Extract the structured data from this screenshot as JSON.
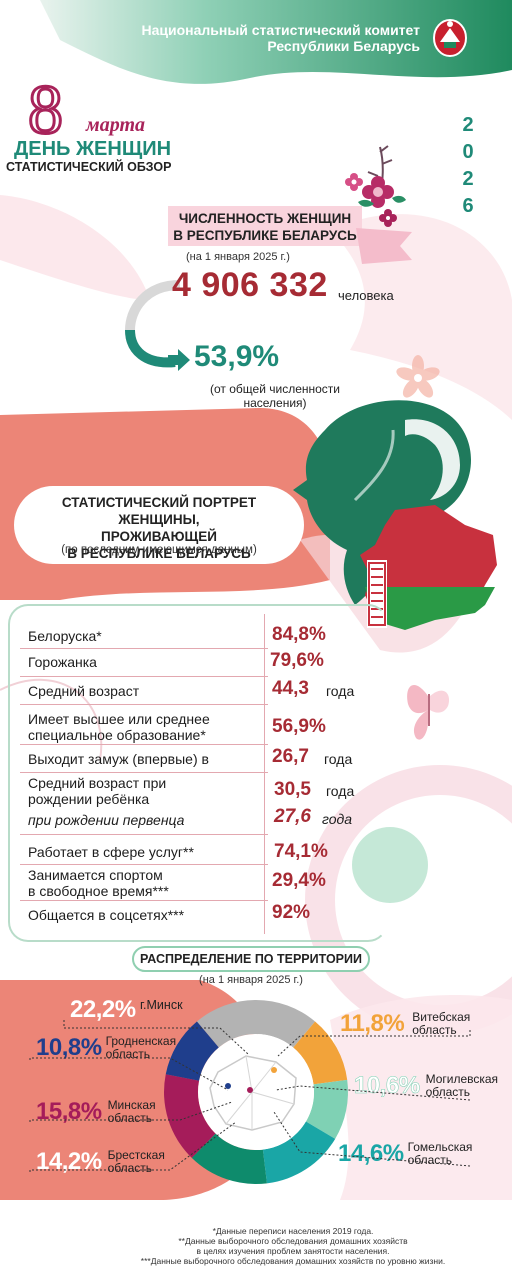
{
  "header": {
    "org_line1": "Национальный статистический комитет",
    "org_line2": "Республики Беларусь",
    "day_number": "8",
    "month": "марта",
    "title": "ДЕНЬ ЖЕНЩИН",
    "subtitle": "СТАТИСТИЧЕСКИЙ ОБЗОР",
    "year_digits": [
      "2",
      "0",
      "2",
      "6"
    ]
  },
  "population": {
    "heading_line1": "ЧИСЛЕННОСТЬ ЖЕНЩИН",
    "heading_line2": "В РЕСПУБЛИКЕ БЕЛАРУСЬ",
    "date_note": "(на 1 января 2025 г.)",
    "value": "4 906 332",
    "unit": "человека",
    "share": "53,9%",
    "share_note_line1": "(от общей численности",
    "share_note_line2": "населения)"
  },
  "portrait": {
    "heading_line1": "СТАТИСТИЧЕСКИЙ ПОРТРЕТ ЖЕНЩИНЫ,",
    "heading_line2": "ПРОЖИВАЮЩЕЙ",
    "heading_line3": "В РЕСПУБЛИКЕ БЕЛАРУСЬ",
    "heading_note": "(по последним имеющимся данным)",
    "rows": [
      {
        "label1": "Белоруска*",
        "label2": "",
        "value": "84,8%",
        "unit": ""
      },
      {
        "label1": "Горожанка",
        "label2": "",
        "value": "79,6%",
        "unit": ""
      },
      {
        "label1": "Средний возраст",
        "label2": "",
        "value": "44,3",
        "unit": "года"
      },
      {
        "label1": "Имеет высшее или среднее",
        "label2": "специальное образование*",
        "value": "56,9%",
        "unit": ""
      },
      {
        "label1": "Выходит замуж (впервые) в",
        "label2": "",
        "value": "26,7",
        "unit": "года"
      },
      {
        "label1": "Средний возраст при",
        "label2": "рождении ребёнка",
        "value": "30,5",
        "unit": "года"
      },
      {
        "label1": "при рождении первенца",
        "label2": "",
        "value": "27,6",
        "unit": "года"
      },
      {
        "label1": "Работает в сфере услуг**",
        "label2": "",
        "value": "74,1%",
        "unit": ""
      },
      {
        "label1": "Занимается спортом",
        "label2": "в свободное время***",
        "value": "29,4%",
        "unit": ""
      },
      {
        "label1": "Общается в соцсетях***",
        "label2": "",
        "value": "92%",
        "unit": ""
      }
    ]
  },
  "territory": {
    "heading": "РАСПРЕДЕЛЕНИЕ ПО ТЕРРИТОРИИ",
    "date_note": "(на 1 января 2025 г.)"
  },
  "chart_data": {
    "type": "pie",
    "title": "РАСПРЕДЕЛЕНИЕ ПО ТЕРРИТОРИИ",
    "categories": [
      "г.Минск",
      "Витебская область",
      "Могилевская область",
      "Гомельская область",
      "Брестская область",
      "Минская область",
      "Гродненская область"
    ],
    "values": [
      22.2,
      11.8,
      10.6,
      14.6,
      14.2,
      15.8,
      10.8
    ],
    "labels": [
      "22,2%",
      "11,8%",
      "10,6%",
      "14,6%",
      "14,2%",
      "15,8%",
      "10,8%"
    ],
    "colors": [
      "#b3b3b3",
      "#f2a33a",
      "#7fd1b4",
      "#1aa6a6",
      "#0e8b6c",
      "#a51c5a",
      "#1f3e8c"
    ],
    "region_lines": [
      [
        "г.Минск",
        ""
      ],
      [
        "Витебская",
        "область"
      ],
      [
        "Могилевская",
        "область"
      ],
      [
        "Гомельская",
        "область"
      ],
      [
        "Брестская",
        "область"
      ],
      [
        "Минская",
        "область"
      ],
      [
        "Гродненская",
        "область"
      ]
    ]
  },
  "footnotes": [
    "*Данные переписи населения 2019 года.",
    "**Данные выборочного обследования домашних хозяйств",
    "в целях изучения проблем занятости населения.",
    "***Данные выборочного обследования домашних хозяйств по уровню жизни."
  ],
  "colors": {
    "brand": "#a8235a",
    "accent_teal": "#1f8a78",
    "value_red": "#a62b34",
    "salmon": "#ec8577",
    "pink_light": "#f8d3dc"
  }
}
